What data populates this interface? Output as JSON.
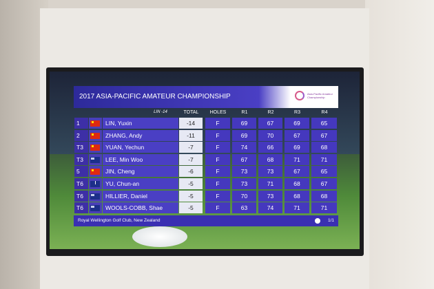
{
  "scoreboard": {
    "title": "2017 ASIA-PACIFIC AMATEUR CHAMPIONSHIP",
    "logo_text": "Asia-Pacific Amateur Championship",
    "header_label": "LIN -14",
    "columns": [
      "TOTAL",
      "HOLES",
      "R1",
      "R2",
      "R3",
      "R4"
    ],
    "rows": [
      [
        "1",
        "LIN, Yuxin",
        -14,
        "F",
        69,
        67,
        69,
        65
      ],
      [
        "2",
        "ZHANG, Andy",
        -11,
        "F",
        69,
        70,
        67,
        67
      ],
      [
        "T3",
        "YUAN, Yechun",
        -7,
        "F",
        74,
        66,
        69,
        68
      ],
      [
        "T3",
        "LEE, Min Woo",
        -7,
        "F",
        67,
        68,
        71,
        71
      ],
      [
        "5",
        "JIN, Cheng",
        -6,
        "F",
        73,
        73,
        67,
        65
      ],
      [
        "T6",
        "YU, Chun-an",
        -5,
        "F",
        73,
        71,
        68,
        67
      ],
      [
        "T6",
        "HILLIER, Daniel",
        -5,
        "F",
        70,
        73,
        68,
        68
      ],
      [
        "T6",
        "WOOLS-COBB, Shae",
        -5,
        "F",
        63,
        74,
        71,
        71
      ]
    ],
    "venue": "Royal Wellington Golf Club, New Zealand",
    "page": "1/1"
  }
}
